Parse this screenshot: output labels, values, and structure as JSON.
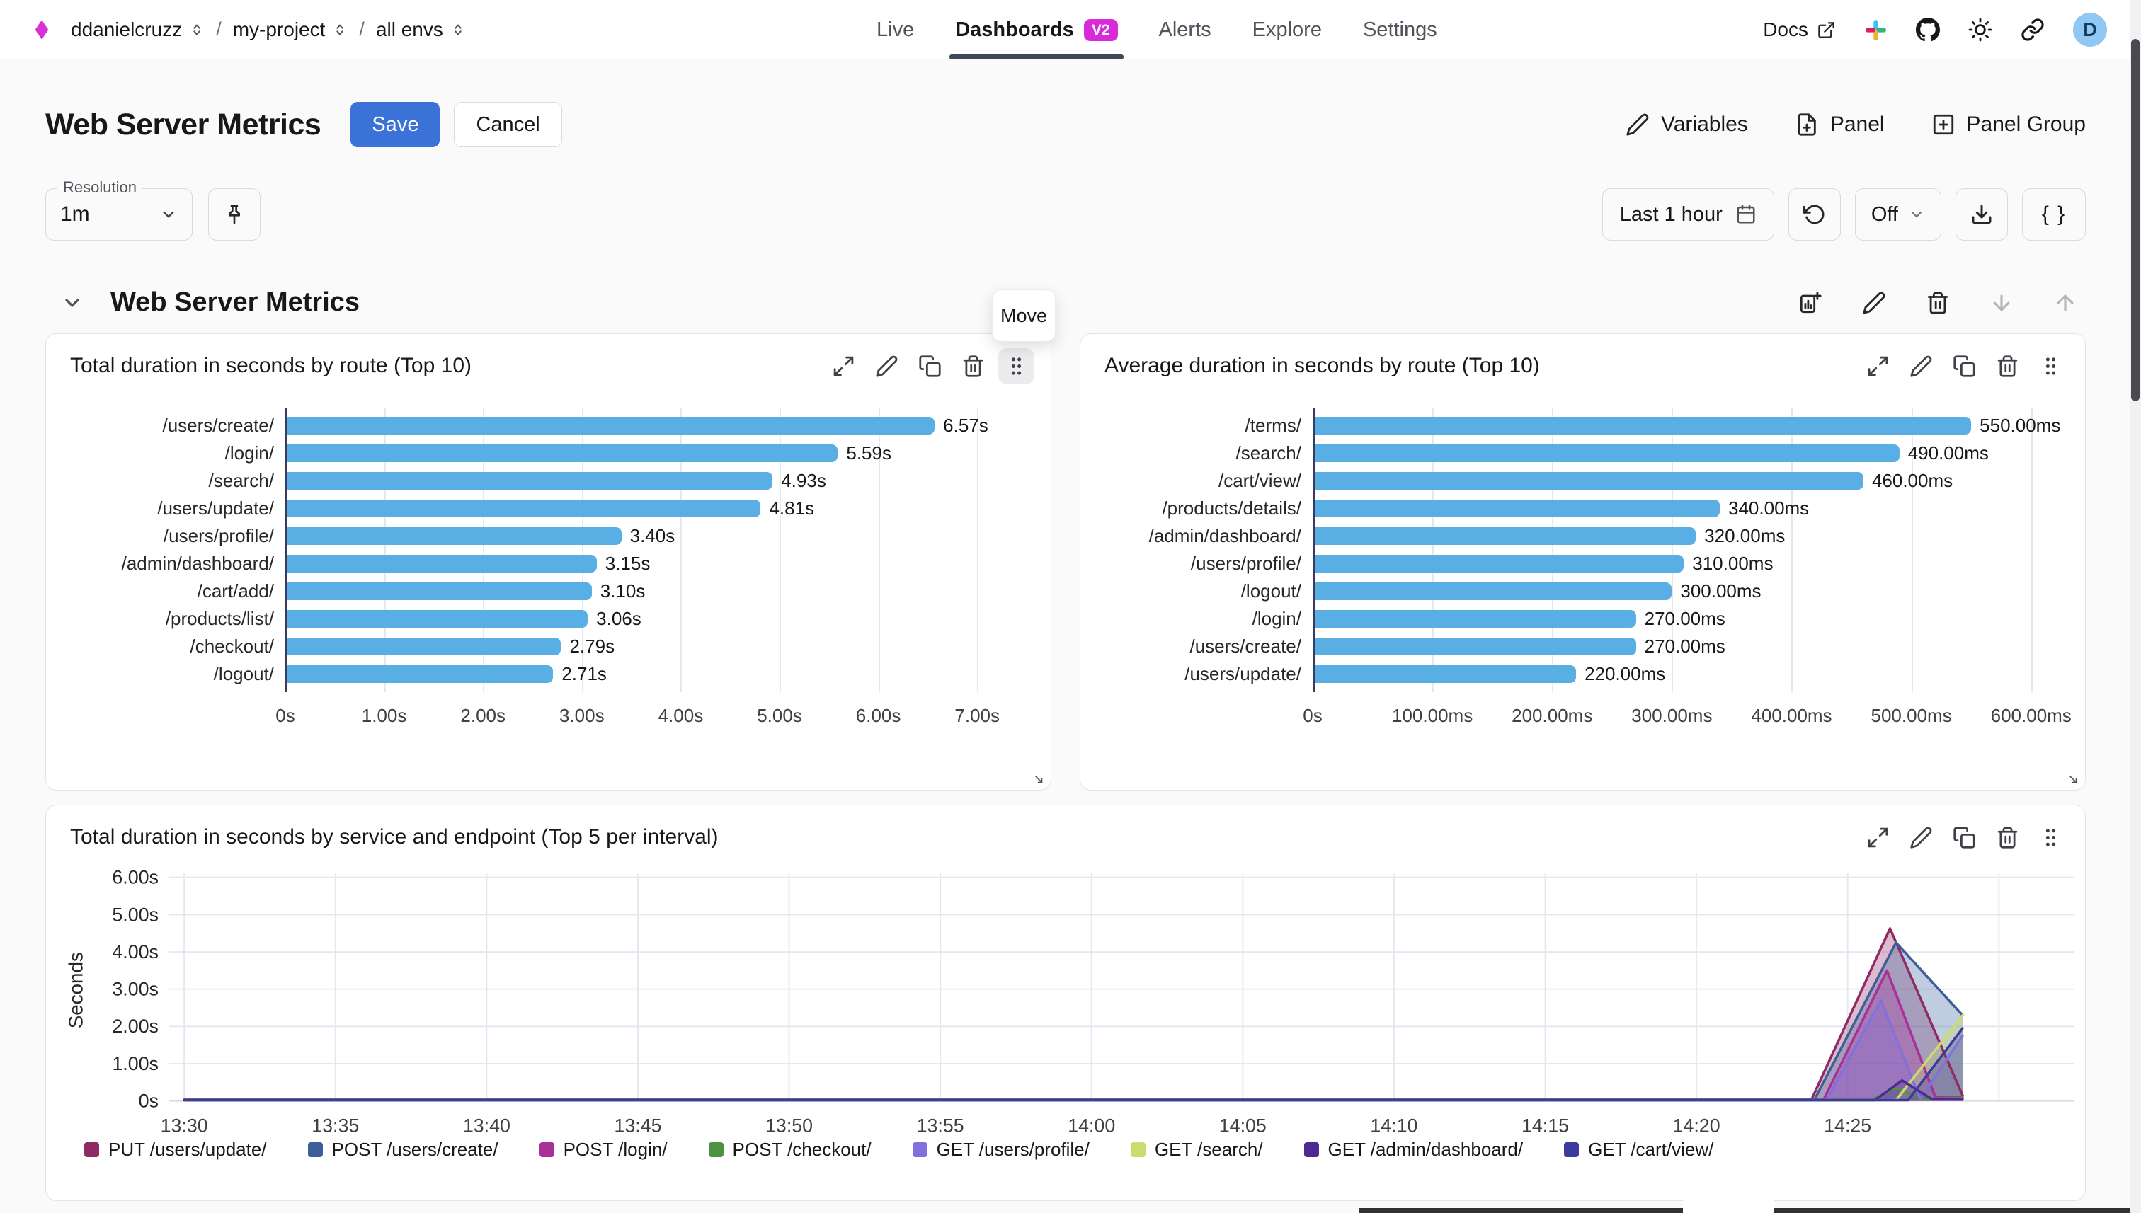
{
  "nav": {
    "breadcrumb": [
      {
        "label": "ddanielcruzz"
      },
      {
        "label": "my-project"
      },
      {
        "label": "all envs"
      }
    ],
    "tabs": [
      {
        "label": "Live",
        "active": false
      },
      {
        "label": "Dashboards",
        "active": true,
        "badge": "V2"
      },
      {
        "label": "Alerts",
        "active": false
      },
      {
        "label": "Explore",
        "active": false
      },
      {
        "label": "Settings",
        "active": false
      }
    ],
    "docs_label": "Docs",
    "avatar_initial": "D"
  },
  "header": {
    "title": "Web Server Metrics",
    "save_label": "Save",
    "cancel_label": "Cancel",
    "variables_label": "Variables",
    "panel_label": "Panel",
    "panel_group_label": "Panel Group"
  },
  "toolbar": {
    "resolution_label": "Resolution",
    "resolution_value": "1m",
    "time_range_value": "Last 1 hour",
    "refresh_value": "Off",
    "braces_label": "{ }"
  },
  "section": {
    "title": "Web Server Metrics"
  },
  "tooltip": {
    "move_label": "Move"
  },
  "colors": {
    "accent_blue": "#3a72d8",
    "bar_blue": "#59aee4",
    "badge_magenta": "#d82ad8",
    "active_tab_underline": "#3e4a5a",
    "avatar_bg": "#90c7f3"
  },
  "chart_data": [
    {
      "type": "bar",
      "orientation": "horizontal",
      "title": "Total duration in seconds by route (Top 10)",
      "categories": [
        "/users/create/",
        "/login/",
        "/search/",
        "/users/update/",
        "/users/profile/",
        "/admin/dashboard/",
        "/cart/add/",
        "/products/list/",
        "/checkout/",
        "/logout/"
      ],
      "values": [
        6.57,
        5.59,
        4.93,
        4.81,
        3.4,
        3.15,
        3.1,
        3.06,
        2.79,
        2.71
      ],
      "value_labels": [
        "6.57s",
        "5.59s",
        "4.93s",
        "4.81s",
        "3.40s",
        "3.15s",
        "3.10s",
        "3.06s",
        "2.79s",
        "2.71s"
      ],
      "xlim": [
        0,
        7.5
      ],
      "ticks": [
        {
          "v": 0,
          "label": "0s"
        },
        {
          "v": 1,
          "label": "1.00s"
        },
        {
          "v": 2,
          "label": "2.00s"
        },
        {
          "v": 3,
          "label": "3.00s"
        },
        {
          "v": 4,
          "label": "4.00s"
        },
        {
          "v": 5,
          "label": "5.00s"
        },
        {
          "v": 6,
          "label": "6.00s"
        },
        {
          "v": 7,
          "label": "7.00s"
        }
      ],
      "bar_color": "#59aee4",
      "label_col_width": 310
    },
    {
      "type": "bar",
      "orientation": "horizontal",
      "title": "Average duration in seconds by route (Top 10)",
      "categories": [
        "/terms/",
        "/search/",
        "/cart/view/",
        "/products/details/",
        "/admin/dashboard/",
        "/users/profile/",
        "/logout/",
        "/login/",
        "/users/create/",
        "/users/update/"
      ],
      "values": [
        550,
        490,
        460,
        340,
        320,
        310,
        300,
        270,
        270,
        220
      ],
      "value_labels": [
        "550.00ms",
        "490.00ms",
        "460.00ms",
        "340.00ms",
        "320.00ms",
        "310.00ms",
        "300.00ms",
        "270.00ms",
        "270.00ms",
        "220.00ms"
      ],
      "xlim": [
        0,
        625
      ],
      "ticks": [
        {
          "v": 0,
          "label": "0s"
        },
        {
          "v": 100,
          "label": "100.00ms"
        },
        {
          "v": 200,
          "label": "200.00ms"
        },
        {
          "v": 300,
          "label": "300.00ms"
        },
        {
          "v": 400,
          "label": "400.00ms"
        },
        {
          "v": 500,
          "label": "500.00ms"
        },
        {
          "v": 600,
          "label": "600.00ms"
        }
      ],
      "bar_color": "#59aee4",
      "label_col_width": 300
    },
    {
      "type": "area",
      "title": "Total duration in seconds by service and endpoint (Top 5 per interval)",
      "ylabel": "Seconds",
      "ylim": [
        0,
        6.2
      ],
      "x_domain_minutes": [
        -0.5,
        62.5
      ],
      "yticks": [
        {
          "v": 0,
          "label": "0s"
        },
        {
          "v": 1,
          "label": "1.00s"
        },
        {
          "v": 2,
          "label": "2.00s"
        },
        {
          "v": 3,
          "label": "3.00s"
        },
        {
          "v": 4,
          "label": "4.00s"
        },
        {
          "v": 5,
          "label": "5.00s"
        },
        {
          "v": 6,
          "label": "6.00s"
        }
      ],
      "xticks": [
        {
          "m": 0,
          "label": "13:30"
        },
        {
          "m": 5,
          "label": "13:35"
        },
        {
          "m": 10,
          "label": "13:40"
        },
        {
          "m": 15,
          "label": "13:45"
        },
        {
          "m": 20,
          "label": "13:50"
        },
        {
          "m": 25,
          "label": "13:55"
        },
        {
          "m": 30,
          "label": "14:00"
        },
        {
          "m": 35,
          "label": "14:05"
        },
        {
          "m": 40,
          "label": "14:10"
        },
        {
          "m": 45,
          "label": "14:15"
        },
        {
          "m": 50,
          "label": "14:20"
        },
        {
          "m": 55,
          "label": "14:25"
        },
        {
          "m": 60,
          "label": ""
        }
      ],
      "series": [
        {
          "name": "PUT /users/update/",
          "color": "#8f2b63",
          "points": [
            [
              0,
              0.03
            ],
            [
              53.8,
              0.03
            ],
            [
              56.4,
              4.63
            ],
            [
              58.8,
              0.15
            ]
          ]
        },
        {
          "name": "POST /users/create/",
          "color": "#3c5f9a",
          "points": [
            [
              0,
              0.03
            ],
            [
              53.9,
              0.03
            ],
            [
              56.6,
              4.25
            ],
            [
              58.8,
              2.3
            ]
          ]
        },
        {
          "name": "POST /login/",
          "color": "#a93099",
          "points": [
            [
              0,
              0.03
            ],
            [
              54.2,
              0.03
            ],
            [
              56.3,
              3.5
            ],
            [
              57.9,
              0.1
            ],
            [
              58.8,
              0.1
            ]
          ]
        },
        {
          "name": "POST /checkout/",
          "color": "#4d9141",
          "points": [
            [
              0,
              0.03
            ],
            [
              55.8,
              0.03
            ],
            [
              56.6,
              0.35
            ],
            [
              57.5,
              0.05
            ],
            [
              58.8,
              0.08
            ]
          ]
        },
        {
          "name": "GET /users/profile/",
          "color": "#8270dd",
          "points": [
            [
              0,
              0.02
            ],
            [
              54.3,
              0.02
            ],
            [
              56.1,
              2.7
            ],
            [
              57.4,
              0.05
            ],
            [
              58.8,
              1.75
            ]
          ]
        },
        {
          "name": "GET /search/",
          "color": "#cbdc6f",
          "points": [
            [
              0,
              0.02
            ],
            [
              56.6,
              0.02
            ],
            [
              58.8,
              2.3
            ]
          ]
        },
        {
          "name": "GET /admin/dashboard/",
          "color": "#4c2a92",
          "points": [
            [
              0,
              0.02
            ],
            [
              55.9,
              0.02
            ],
            [
              56.8,
              0.55
            ],
            [
              57.8,
              0.04
            ],
            [
              58.8,
              0.04
            ]
          ]
        },
        {
          "name": "GET /cart/view/",
          "color": "#3b3a9e",
          "points": [
            [
              0,
              0.02
            ],
            [
              57.0,
              0.02
            ],
            [
              58.8,
              1.95
            ]
          ]
        }
      ]
    }
  ]
}
